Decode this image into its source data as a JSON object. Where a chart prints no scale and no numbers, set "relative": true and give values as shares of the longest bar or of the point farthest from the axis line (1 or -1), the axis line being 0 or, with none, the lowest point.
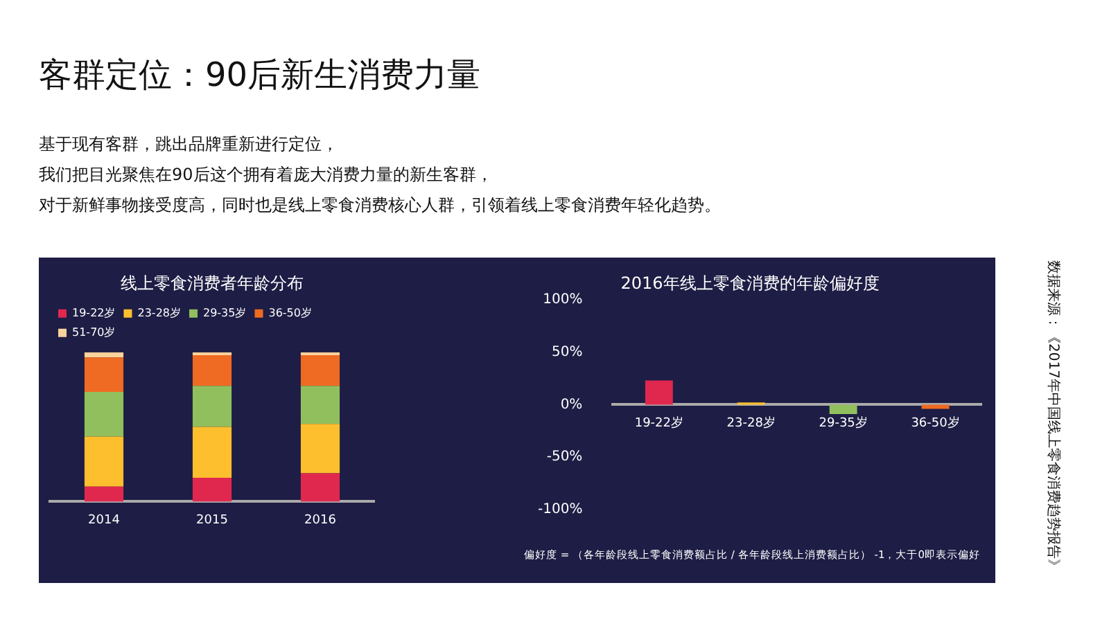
{
  "chart_data": [
    {
      "type": "bar",
      "title": "线上零食消费者年龄分布",
      "categories": [
        "2014",
        "2015",
        "2016"
      ],
      "stacked": true,
      "relative": true,
      "legend": "top",
      "grid": false,
      "annotations": [
        "客群定位：90后新生消费力量",
        "基于现有客群，跳出品牌重新进行定位，",
        "我们把目光聚焦在90后这个拥有着庞大消费力量的新生客群，",
        "对于新鲜事物接受度高，同时也是线上零食消费核心人群，引领着线上零食消费年轻化趋势。"
      ],
      "series": [
        {
          "name": "19-22岁",
          "color": "#e0284f",
          "values": [
            0.1,
            0.16,
            0.19
          ]
        },
        {
          "name": "23-28岁",
          "color": "#fdbf2d",
          "values": [
            0.335,
            0.34,
            0.33
          ]
        },
        {
          "name": "29-35岁",
          "color": "#92bf5d",
          "values": [
            0.3,
            0.275,
            0.255
          ]
        },
        {
          "name": "36-50岁",
          "color": "#ef6a22",
          "values": [
            0.23,
            0.205,
            0.205
          ]
        },
        {
          "name": "51-70岁",
          "color": "#fbd29b",
          "values": [
            0.035,
            0.02,
            0.02
          ]
        }
      ]
    },
    {
      "type": "bar",
      "title": "2016年线上零食消费的年龄偏好度",
      "categories": [
        "19-22岁",
        "23-28岁",
        "29-35岁",
        "36-50岁"
      ],
      "values": [
        23,
        2,
        -9,
        -4
      ],
      "colors": [
        "#e0284f",
        "#fdbf2d",
        "#92bf5d",
        "#ef6a22"
      ],
      "ylim": [
        -100,
        100
      ],
      "yticks": [
        {
          "value": -100,
          "label": "-100%"
        },
        {
          "value": -50,
          "label": "-50%"
        },
        {
          "value": 0,
          "label": "0%"
        },
        {
          "value": 50,
          "label": "50%"
        },
        {
          "value": 100,
          "label": "100%"
        }
      ],
      "grid": false,
      "legend": false,
      "annotations": [
        "偏好度 = （各年龄段线上零食消费额占比 / 各年龄段线上消费额占比） -1，大于0即表示偏好",
        "数据来源：《2017年中国线上零食消费趋势报告》"
      ]
    }
  ]
}
